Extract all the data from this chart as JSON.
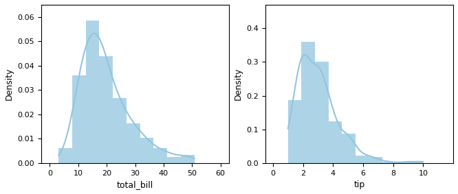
{
  "fig_width": 6.66,
  "fig_height": 2.83,
  "dpi": 100,
  "subplots": [
    {
      "column": "total_bill",
      "xlabel": "total_bill",
      "ylabel": "Density",
      "xlim": [
        -3,
        63
      ],
      "ylim": [
        0,
        0.065
      ],
      "yticks": [
        0.0,
        0.01,
        0.02,
        0.03,
        0.04,
        0.05,
        0.06
      ],
      "xticks": [
        0,
        10,
        20,
        30,
        40,
        50,
        60
      ],
      "bins": 10
    },
    {
      "column": "tip",
      "xlabel": "tip",
      "ylabel": "Density",
      "xlim": [
        -0.5,
        12
      ],
      "ylim": [
        0,
        0.47
      ],
      "yticks": [
        0.0,
        0.1,
        0.2,
        0.3,
        0.4
      ],
      "xticks": [
        0,
        2,
        4,
        6,
        8,
        10
      ],
      "bins": 10
    }
  ],
  "hist_color": "#92c5de",
  "hist_alpha": 0.75,
  "kde_color": "#3a7aaa",
  "kde_linewidth": 1.5
}
